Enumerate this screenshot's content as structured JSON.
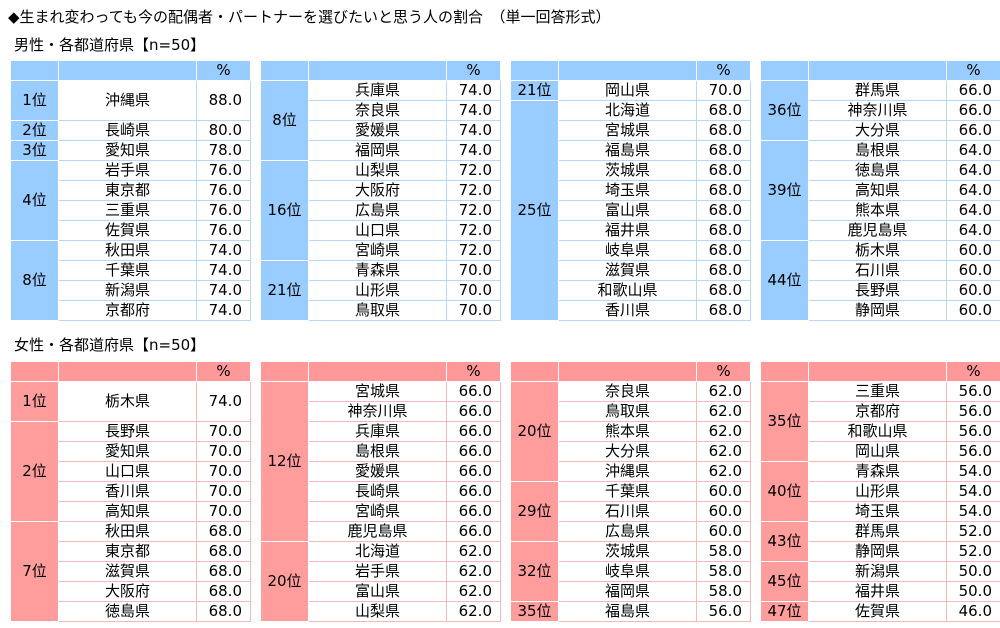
{
  "title": "◆生まれ変わっても今の配偶者・パートナーを選びたいと思う人の割合　（単一回答形式）",
  "percent_header": "%",
  "colors": {
    "male": "#99ccff",
    "female": "#ff9999"
  },
  "male": {
    "label": "男性・各都道府県【n=50】",
    "tables": [
      [
        {
          "rank": "1位",
          "rows": [
            [
              "沖縄県",
              "88.0"
            ]
          ]
        },
        {
          "rank": "2位",
          "rows": [
            [
              "長崎県",
              "80.0"
            ]
          ]
        },
        {
          "rank": "3位",
          "rows": [
            [
              "愛知県",
              "78.0"
            ]
          ]
        },
        {
          "rank": "4位",
          "rows": [
            [
              "岩手県",
              "76.0"
            ],
            [
              "東京都",
              "76.0"
            ],
            [
              "三重県",
              "76.0"
            ],
            [
              "佐賀県",
              "76.0"
            ]
          ]
        },
        {
          "rank": "8位",
          "rows": [
            [
              "秋田県",
              "74.0"
            ],
            [
              "千葉県",
              "74.0"
            ],
            [
              "新潟県",
              "74.0"
            ],
            [
              "京都府",
              "74.0"
            ]
          ]
        }
      ],
      [
        {
          "rank": "8位",
          "rows": [
            [
              "兵庫県",
              "74.0"
            ],
            [
              "奈良県",
              "74.0"
            ],
            [
              "愛媛県",
              "74.0"
            ],
            [
              "福岡県",
              "74.0"
            ]
          ]
        },
        {
          "rank": "16位",
          "rows": [
            [
              "山梨県",
              "72.0"
            ],
            [
              "大阪府",
              "72.0"
            ],
            [
              "広島県",
              "72.0"
            ],
            [
              "山口県",
              "72.0"
            ],
            [
              "宮崎県",
              "72.0"
            ]
          ]
        },
        {
          "rank": "21位",
          "rows": [
            [
              "青森県",
              "70.0"
            ],
            [
              "山形県",
              "70.0"
            ],
            [
              "鳥取県",
              "70.0"
            ]
          ]
        }
      ],
      [
        {
          "rank": "21位",
          "rows": [
            [
              "岡山県",
              "70.0"
            ]
          ]
        },
        {
          "rank": "25位",
          "rows": [
            [
              "北海道",
              "68.0"
            ],
            [
              "宮城県",
              "68.0"
            ],
            [
              "福島県",
              "68.0"
            ],
            [
              "茨城県",
              "68.0"
            ],
            [
              "埼玉県",
              "68.0"
            ],
            [
              "富山県",
              "68.0"
            ],
            [
              "福井県",
              "68.0"
            ],
            [
              "岐阜県",
              "68.0"
            ],
            [
              "滋賀県",
              "68.0"
            ],
            [
              "和歌山県",
              "68.0"
            ],
            [
              "香川県",
              "68.0"
            ]
          ]
        }
      ],
      [
        {
          "rank": "36位",
          "rows": [
            [
              "群馬県",
              "66.0"
            ],
            [
              "神奈川県",
              "66.0"
            ],
            [
              "大分県",
              "66.0"
            ]
          ]
        },
        {
          "rank": "39位",
          "rows": [
            [
              "島根県",
              "64.0"
            ],
            [
              "徳島県",
              "64.0"
            ],
            [
              "高知県",
              "64.0"
            ],
            [
              "熊本県",
              "64.0"
            ],
            [
              "鹿児島県",
              "64.0"
            ]
          ]
        },
        {
          "rank": "44位",
          "rows": [
            [
              "栃木県",
              "60.0"
            ],
            [
              "石川県",
              "60.0"
            ],
            [
              "長野県",
              "60.0"
            ],
            [
              "静岡県",
              "60.0"
            ]
          ]
        }
      ]
    ]
  },
  "female": {
    "label": "女性・各都道府県【n=50】",
    "tables": [
      [
        {
          "rank": "1位",
          "rows": [
            [
              "栃木県",
              "74.0"
            ]
          ]
        },
        {
          "rank": "2位",
          "rows": [
            [
              "長野県",
              "70.0"
            ],
            [
              "愛知県",
              "70.0"
            ],
            [
              "山口県",
              "70.0"
            ],
            [
              "香川県",
              "70.0"
            ],
            [
              "高知県",
              "70.0"
            ]
          ]
        },
        {
          "rank": "7位",
          "rows": [
            [
              "秋田県",
              "68.0"
            ],
            [
              "東京都",
              "68.0"
            ],
            [
              "滋賀県",
              "68.0"
            ],
            [
              "大阪府",
              "68.0"
            ],
            [
              "徳島県",
              "68.0"
            ]
          ]
        }
      ],
      [
        {
          "rank": "12位",
          "rows": [
            [
              "宮城県",
              "66.0"
            ],
            [
              "神奈川県",
              "66.0"
            ],
            [
              "兵庫県",
              "66.0"
            ],
            [
              "島根県",
              "66.0"
            ],
            [
              "愛媛県",
              "66.0"
            ],
            [
              "長崎県",
              "66.0"
            ],
            [
              "宮崎県",
              "66.0"
            ],
            [
              "鹿児島県",
              "66.0"
            ]
          ]
        },
        {
          "rank": "20位",
          "rows": [
            [
              "北海道",
              "62.0"
            ],
            [
              "岩手県",
              "62.0"
            ],
            [
              "富山県",
              "62.0"
            ],
            [
              "山梨県",
              "62.0"
            ]
          ]
        }
      ],
      [
        {
          "rank": "20位",
          "rows": [
            [
              "奈良県",
              "62.0"
            ],
            [
              "鳥取県",
              "62.0"
            ],
            [
              "熊本県",
              "62.0"
            ],
            [
              "大分県",
              "62.0"
            ],
            [
              "沖縄県",
              "62.0"
            ]
          ]
        },
        {
          "rank": "29位",
          "rows": [
            [
              "千葉県",
              "60.0"
            ],
            [
              "石川県",
              "60.0"
            ],
            [
              "広島県",
              "60.0"
            ]
          ]
        },
        {
          "rank": "32位",
          "rows": [
            [
              "茨城県",
              "58.0"
            ],
            [
              "岐阜県",
              "58.0"
            ],
            [
              "福岡県",
              "58.0"
            ]
          ]
        },
        {
          "rank": "35位",
          "rows": [
            [
              "福島県",
              "56.0"
            ]
          ]
        }
      ],
      [
        {
          "rank": "35位",
          "rows": [
            [
              "三重県",
              "56.0"
            ],
            [
              "京都府",
              "56.0"
            ],
            [
              "和歌山県",
              "56.0"
            ],
            [
              "岡山県",
              "56.0"
            ]
          ]
        },
        {
          "rank": "40位",
          "rows": [
            [
              "青森県",
              "54.0"
            ],
            [
              "山形県",
              "54.0"
            ],
            [
              "埼玉県",
              "54.0"
            ]
          ]
        },
        {
          "rank": "43位",
          "rows": [
            [
              "群馬県",
              "52.0"
            ],
            [
              "静岡県",
              "52.0"
            ]
          ]
        },
        {
          "rank": "45位",
          "rows": [
            [
              "新潟県",
              "50.0"
            ],
            [
              "福井県",
              "50.0"
            ]
          ]
        },
        {
          "rank": "47位",
          "rows": [
            [
              "佐賀県",
              "46.0"
            ]
          ]
        }
      ]
    ]
  }
}
